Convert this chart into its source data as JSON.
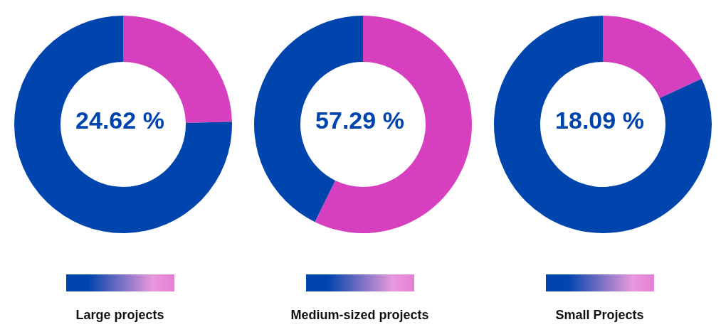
{
  "chart_data": [
    {
      "type": "donut",
      "title": "Large projects",
      "categories": [
        null,
        null
      ],
      "values": [
        24.62,
        75.38
      ],
      "colors": [
        "#d63fbe",
        "#0044ad"
      ],
      "annotations": [
        "24.62 %"
      ]
    },
    {
      "type": "donut",
      "title": "Medium-sized projects",
      "categories": [
        null,
        null
      ],
      "values": [
        57.29,
        42.71
      ],
      "colors": [
        "#d63fbe",
        "#0044ad"
      ],
      "annotations": [
        "57.29 %"
      ]
    },
    {
      "type": "donut",
      "title": "Small Projects",
      "categories": [
        null,
        null
      ],
      "values": [
        18.09,
        81.91
      ],
      "colors": [
        "#d63fbe",
        "#0044ad"
      ],
      "annotations": [
        "18.09 %"
      ]
    }
  ]
}
